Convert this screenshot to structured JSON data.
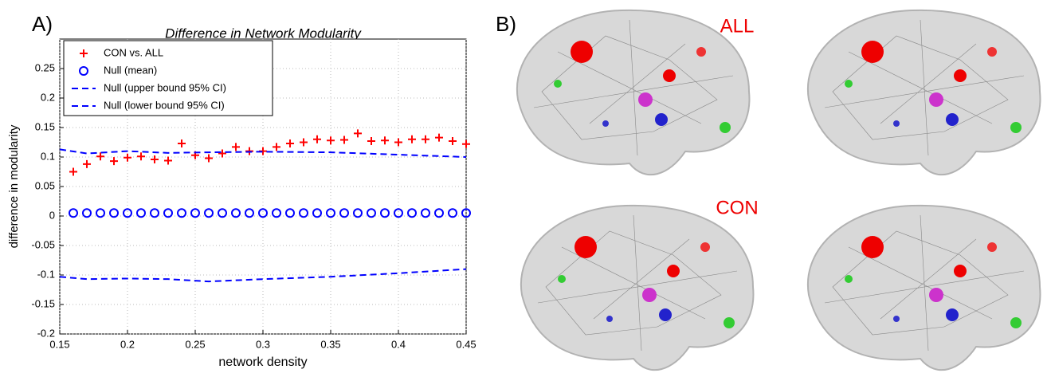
{
  "chart_data": {
    "type": "line",
    "panel_label": "A)",
    "title": "Difference in Network Modularity",
    "xlabel": "network density",
    "ylabel": "difference in modularity",
    "xlim": [
      0.15,
      0.45
    ],
    "xticks": [
      0.15,
      0.2,
      0.25,
      0.3,
      0.35,
      0.4,
      0.45
    ],
    "ylim": [
      -0.2,
      0.3
    ],
    "yticks": [
      -0.2,
      -0.15,
      -0.1,
      -0.05,
      0,
      0.05,
      0.1,
      0.15,
      0.2,
      0.25
    ],
    "grid": true,
    "legend": "upper left",
    "series": [
      {
        "name": "CON vs. ALL",
        "color": "#ff0000",
        "style": "plus",
        "x": [
          0.16,
          0.17,
          0.18,
          0.19,
          0.2,
          0.21,
          0.22,
          0.23,
          0.24,
          0.25,
          0.26,
          0.27,
          0.28,
          0.29,
          0.3,
          0.31,
          0.32,
          0.33,
          0.34,
          0.35,
          0.36,
          0.37,
          0.38,
          0.39,
          0.4,
          0.41,
          0.42,
          0.43,
          0.44,
          0.45
        ],
        "values": [
          0.075,
          0.088,
          0.101,
          0.093,
          0.099,
          0.101,
          0.096,
          0.094,
          0.123,
          0.103,
          0.098,
          0.106,
          0.117,
          0.11,
          0.11,
          0.117,
          0.123,
          0.125,
          0.13,
          0.128,
          0.129,
          0.14,
          0.127,
          0.128,
          0.125,
          0.13,
          0.13,
          0.133,
          0.127,
          0.122
        ]
      },
      {
        "name": "Null (mean)",
        "color": "#0000ff",
        "style": "circle",
        "x": [
          0.16,
          0.17,
          0.18,
          0.19,
          0.2,
          0.21,
          0.22,
          0.23,
          0.24,
          0.25,
          0.26,
          0.27,
          0.28,
          0.29,
          0.3,
          0.31,
          0.32,
          0.33,
          0.34,
          0.35,
          0.36,
          0.37,
          0.38,
          0.39,
          0.4,
          0.41,
          0.42,
          0.43,
          0.44,
          0.45
        ],
        "values": [
          0.005,
          0.005,
          0.005,
          0.005,
          0.005,
          0.005,
          0.005,
          0.005,
          0.005,
          0.005,
          0.005,
          0.005,
          0.005,
          0.005,
          0.005,
          0.005,
          0.005,
          0.005,
          0.005,
          0.005,
          0.005,
          0.005,
          0.005,
          0.005,
          0.005,
          0.005,
          0.005,
          0.005,
          0.005,
          0.005
        ]
      },
      {
        "name": "Null (upper bound 95% CI)",
        "color": "#0000ff",
        "style": "dashed",
        "x": [
          0.15,
          0.17,
          0.2,
          0.23,
          0.26,
          0.3,
          0.35,
          0.4,
          0.45
        ],
        "values": [
          0.113,
          0.106,
          0.11,
          0.107,
          0.108,
          0.109,
          0.108,
          0.104,
          0.1
        ]
      },
      {
        "name": "Null (lower bound 95% CI)",
        "color": "#0000ff",
        "style": "dashed",
        "x": [
          0.15,
          0.17,
          0.2,
          0.23,
          0.26,
          0.3,
          0.35,
          0.4,
          0.45
        ],
        "values": [
          -0.103,
          -0.107,
          -0.106,
          -0.107,
          -0.111,
          -0.107,
          -0.103,
          -0.097,
          -0.09
        ]
      }
    ]
  },
  "panel_b": {
    "label": "B)",
    "rows": [
      "ALL",
      "CON"
    ]
  }
}
